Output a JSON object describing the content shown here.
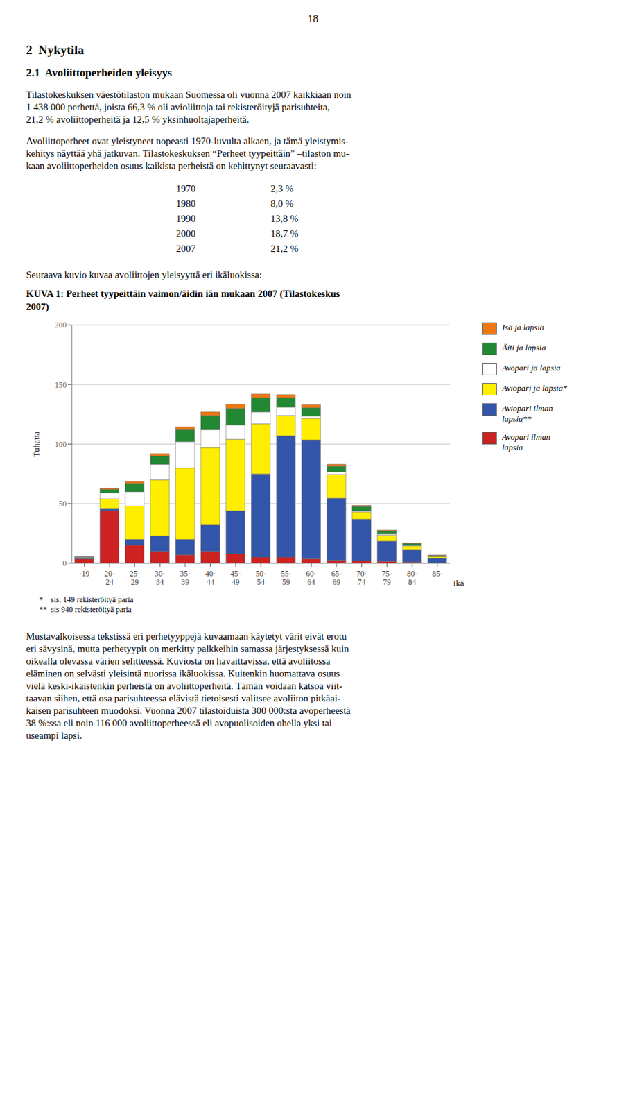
{
  "chart_data": {
    "type": "bar",
    "stacked": true,
    "grid": true,
    "legend": "right",
    "title": "KUVA 1: Perheet tyypeittäin vaimon/äidin iän mukaan 2007 (Tilastokeskus\n2007)",
    "ylabel": "Tuhatta",
    "xlabel": "Ikä",
    "categories": [
      "-19",
      "20-\n24",
      "25-\n29",
      "30-\n34",
      "35-\n39",
      "40-\n44",
      "45-\n49",
      "50-\n54",
      "55-\n59",
      "60-\n64",
      "65-\n69",
      "70-\n74",
      "75-\n79",
      "80-\n84",
      "85-"
    ],
    "ylim": [
      0,
      200
    ],
    "yticks": [
      0,
      50,
      100,
      150,
      200
    ],
    "series": [
      {
        "name": "Avopari ilman\nlapsia",
        "color": "#CC2222",
        "values": [
          3.5,
          44.0,
          15.0,
          10.0,
          7.0,
          10.0,
          8.0,
          5.0,
          5.0,
          3.5,
          2.5,
          2.0,
          1.5,
          1.0,
          0.5
        ]
      },
      {
        "name": "Aviopari ilman\nlapsia**",
        "color": "#3355AA",
        "values": [
          0.5,
          2.0,
          5.0,
          13.0,
          13.0,
          22.0,
          36.0,
          70.0,
          102.0,
          100.0,
          52.0,
          35.0,
          17.0,
          10.0,
          3.5
        ]
      },
      {
        "name": "Aviopari ja lapsia*",
        "color": "#FFEE00",
        "values": [
          0.5,
          8.0,
          28.0,
          47.0,
          60.0,
          65.0,
          60.0,
          42.0,
          17.0,
          18.0,
          20.0,
          6.0,
          5.0,
          3.5,
          1.5
        ]
      },
      {
        "name": "Avopari ja lapsia",
        "color": "#FFFFFF",
        "values": [
          0.5,
          5.0,
          12.0,
          13.0,
          22.0,
          15.0,
          12.0,
          10.0,
          7.0,
          2.0,
          2.0,
          1.0,
          1.0,
          0.5,
          0.2
        ]
      },
      {
        "name": "Äiti ja lapsia",
        "color": "#228833",
        "values": [
          0.3,
          3.0,
          7.0,
          7.0,
          10.0,
          12.0,
          14.0,
          12.0,
          8.0,
          7.0,
          5.0,
          3.5,
          2.5,
          1.5,
          0.8
        ]
      },
      {
        "name": "Isä ja lapsia",
        "color": "#EE7711",
        "values": [
          0.1,
          1.0,
          1.5,
          2.0,
          2.5,
          3.0,
          3.5,
          3.0,
          2.5,
          2.5,
          1.5,
          1.0,
          0.8,
          0.5,
          0.2
        ]
      }
    ],
    "annotations": [
      "18",
      "2  Nykytila",
      "2.1  Avoliittoperheiden yleisyys",
      "Tilastokeskuksen väestötilaston mukaan Suomessa oli vuonna 2007 kaikkiaan noin",
      "1 438 000 perhettä, joista 66,3 % oli avioliittoja tai rekisteröityjä parisuhteita,",
      "21,2 % avoliittoperheitä ja 12,5 % yksinhuoltajaperheitä.",
      "Avoliittoperheet ovat yleistyneet nopeasti 1970-luvulta alkaen, ja tämä yleistymis-",
      "kehitys näyttää yhä jatkuvan. Tilastokeskuksen “Perheet tyypeittäin” –tilaston mu-",
      "kaan avoliittoperheiden osuus kaikista perheistä on kehittynyt seuraavasti:",
      "1970",
      "2,3 %",
      "1980",
      "8,0 %",
      "1990",
      "13,8 %",
      "2000",
      "18,7 %",
      "2007",
      "21,2 %",
      "Seuraava kuvio kuvaa avoliittojen yleisyyttä eri ikäluokissa:",
      "*    sis. 149 rekisteröityä paria",
      "**  sis 940 rekisteröityä paria",
      "Mustavalkoisessa tekstissä eri perhetyyppejä kuvaamaan käytetyt värit eivät erotu",
      "eri sävysinä, mutta perhetyypit on merkitty palkkeihin samassa järjestyksessä kuin",
      "oikealla olevassa värien selitteessä. Kuviosta on havaittavissa, että avoliitossa",
      "eläminen on selvästi yleisintä nuorissa ikäluokissa. Kuitenkin huomattava osuus",
      "vielä keski-ikäistenkin perheistä on avoliittoperheitä. Tämän voidaan katsoa viit-",
      "taavan siihen, että osa parisuhteessa elävistä tietoisesti valitsee avoliiton pitkäai-",
      "kaisen parisuhteen muodoksi. Vuonna 2007 tilastoiduista 300 000:sta avoperheestä",
      "38 %:ssa eli noin 116 000 avoliittoperheessä eli avopuolisoiden ohella yksi tai",
      "useampi lapsi."
    ]
  }
}
